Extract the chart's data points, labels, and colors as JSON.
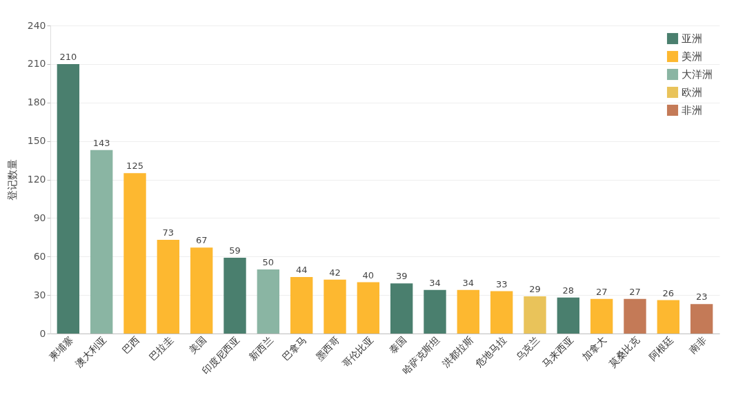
{
  "chart_data": {
    "type": "bar",
    "ylabel": "登记数量",
    "categories": [
      "柬埔寨",
      "澳大利亚",
      "巴西",
      "巴拉圭",
      "美国",
      "印度尼西亚",
      "新西兰",
      "巴拿马",
      "墨西哥",
      "哥伦比亚",
      "泰国",
      "哈萨克斯坦",
      "洪都拉斯",
      "危地马拉",
      "乌克兰",
      "马来西亚",
      "加拿大",
      "莫桑比克",
      "阿根廷",
      "南非"
    ],
    "data_labels": true,
    "grid": "y",
    "legend": "top right",
    "ylim": [
      0,
      240
    ],
    "yticks": [
      0,
      30,
      60,
      90,
      120,
      150,
      180,
      210,
      240
    ],
    "series": [
      {
        "name": "亚洲",
        "color": "#4a7f6e",
        "values": [
          210,
          null,
          null,
          null,
          null,
          59,
          null,
          null,
          null,
          null,
          39,
          34,
          null,
          null,
          null,
          28,
          null,
          null,
          null,
          null
        ]
      },
      {
        "name": "美洲",
        "color": "#fdb830",
        "values": [
          null,
          null,
          125,
          73,
          67,
          null,
          null,
          44,
          42,
          40,
          null,
          null,
          34,
          33,
          null,
          null,
          27,
          null,
          26,
          null
        ]
      },
      {
        "name": "大洋洲",
        "color": "#8ab5a3",
        "values": [
          null,
          143,
          null,
          null,
          null,
          null,
          50,
          null,
          null,
          null,
          null,
          null,
          null,
          null,
          null,
          null,
          null,
          null,
          null,
          null
        ]
      },
      {
        "name": "欧洲",
        "color": "#e9c35a",
        "values": [
          null,
          null,
          null,
          null,
          null,
          null,
          null,
          null,
          null,
          null,
          null,
          null,
          null,
          null,
          29,
          null,
          null,
          null,
          null,
          null
        ]
      },
      {
        "name": "非洲",
        "color": "#c47a57",
        "values": [
          null,
          null,
          null,
          null,
          null,
          null,
          null,
          null,
          null,
          null,
          null,
          null,
          null,
          null,
          null,
          null,
          null,
          27,
          null,
          23
        ]
      }
    ]
  }
}
